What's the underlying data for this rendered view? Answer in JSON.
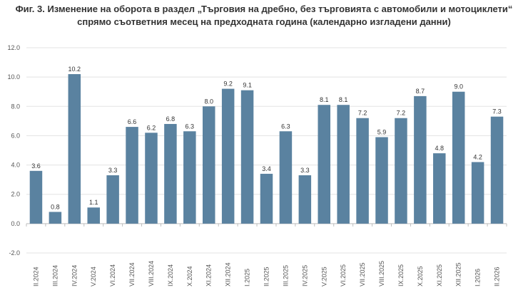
{
  "chart_data": {
    "type": "bar",
    "title": "Фиг. 3. Изменение на оборота в раздел „Търговия на дребно, без търговията с автомобили и мотоциклети“",
    "subtitle": "спрямо съответния месец на предходната година (календарно изгладени данни)",
    "categories": [
      "II.2024",
      "III.2024",
      "IV.2024",
      "V.2024",
      "VI.2024",
      "VII.2024",
      "VIII.2024",
      "IX.2024",
      "X.2024",
      "XI.2024",
      "XII.2024",
      "I.2025",
      "II.2025",
      "III.2025",
      "IV.2025",
      "V.2025",
      "VI.2025",
      "VII.2025",
      "VIII.2025",
      "IX.2025",
      "X.2025",
      "XI.2025",
      "XII.2025",
      "I.2026",
      "II.2026"
    ],
    "values": [
      3.6,
      0.8,
      10.2,
      1.1,
      3.3,
      6.6,
      6.2,
      6.8,
      6.3,
      8.0,
      9.2,
      9.1,
      3.4,
      6.3,
      3.3,
      8.1,
      8.1,
      7.2,
      5.9,
      7.2,
      8.7,
      4.8,
      9.0,
      4.2,
      7.3
    ],
    "y_ticks": [
      "-2.0",
      "0.0",
      "2.0",
      "4.0",
      "6.0",
      "8.0",
      "10.0",
      "12.0"
    ],
    "ylim": [
      -2,
      12
    ],
    "grid": true,
    "bar_color": "#5a82a0",
    "xlabel": "",
    "ylabel": ""
  }
}
